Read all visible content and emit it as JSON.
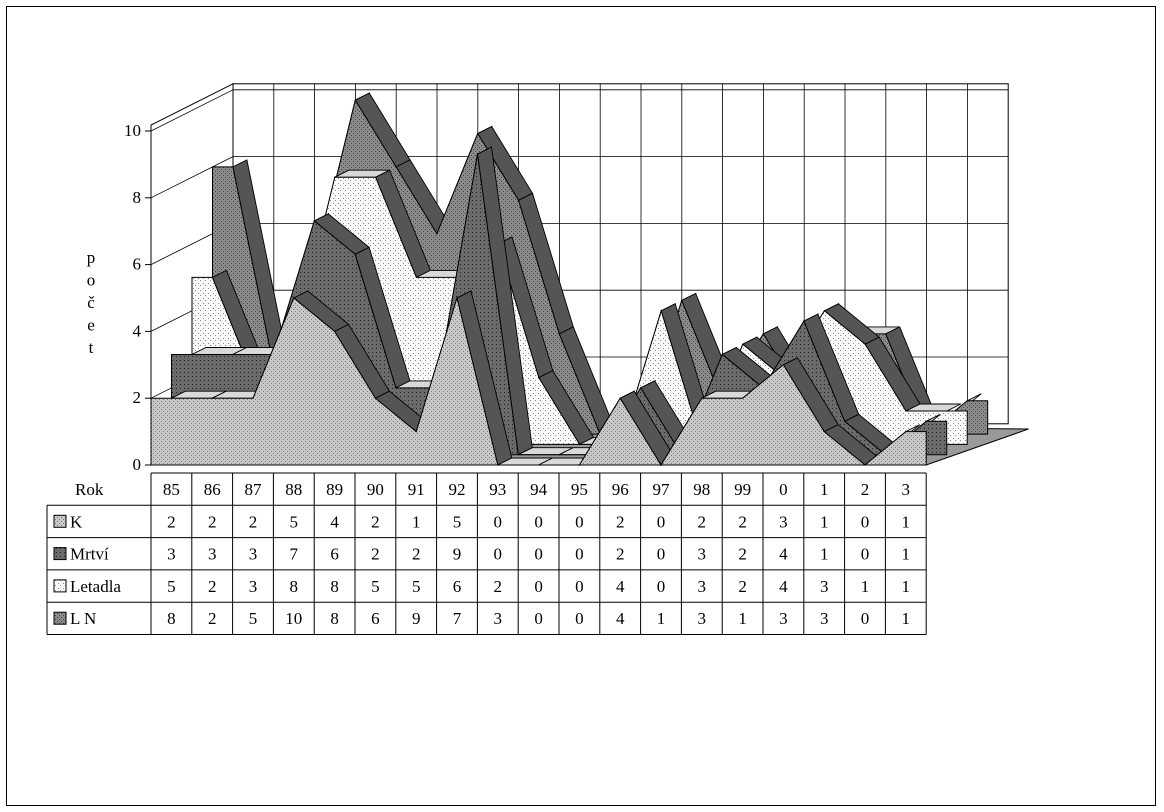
{
  "chart_data": {
    "type": "area",
    "three_d": true,
    "categories": [
      "85",
      "86",
      "87",
      "88",
      "89",
      "90",
      "91",
      "92",
      "93",
      "94",
      "95",
      "96",
      "97",
      "98",
      "99",
      "0",
      "1",
      "2",
      "3"
    ],
    "series": [
      {
        "name": "K",
        "values": [
          2,
          2,
          2,
          5,
          4,
          2,
          1,
          5,
          0,
          0,
          0,
          2,
          0,
          2,
          2,
          3,
          1,
          0,
          1
        ],
        "color": "#c4c4c4"
      },
      {
        "name": "Mrtví",
        "values": [
          3,
          3,
          3,
          7,
          6,
          2,
          2,
          9,
          0,
          0,
          0,
          2,
          0,
          3,
          2,
          4,
          1,
          0,
          1
        ],
        "color": "#6f6f6f"
      },
      {
        "name": "Letadla",
        "values": [
          5,
          2,
          3,
          8,
          8,
          5,
          5,
          6,
          2,
          0,
          0,
          4,
          0,
          3,
          2,
          4,
          3,
          1,
          1
        ],
        "color": "#f2f2f2"
      },
      {
        "name": "L N",
        "values": [
          8,
          2,
          5,
          10,
          8,
          6,
          9,
          7,
          3,
          0,
          0,
          4,
          1,
          3,
          1,
          3,
          3,
          0,
          1
        ],
        "color": "#8c8c8c"
      }
    ],
    "ylabel": "počet",
    "xlabel": "Rok",
    "ylim": [
      0,
      10
    ],
    "yticks": [
      "0",
      "2",
      "4",
      "6",
      "8",
      "10"
    ],
    "grid": true,
    "legend": "data-table-left"
  }
}
